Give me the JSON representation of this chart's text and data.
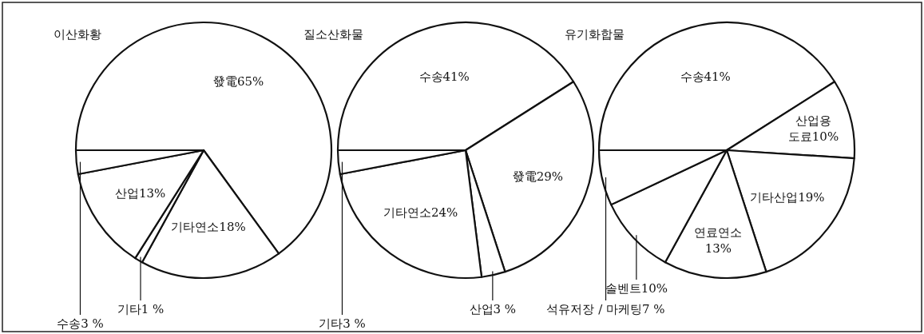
{
  "chart_data": [
    {
      "type": "pie",
      "title": "이산화황",
      "categories": [
        "發電",
        "기타연소",
        "기타",
        "산업",
        "수송"
      ],
      "values": [
        65,
        18,
        1,
        13,
        3
      ],
      "value_labels": [
        "65%",
        "18%",
        "1 %",
        "13%",
        "3 %"
      ],
      "colors": [
        "#ffffff",
        "#ffffff",
        "#ffffff",
        "#ffffff",
        "#ffffff"
      ]
    },
    {
      "type": "pie",
      "title": "질소산화물",
      "categories": [
        "수송",
        "發電",
        "산업",
        "기타연소",
        "기타"
      ],
      "values": [
        41,
        29,
        3,
        24,
        3
      ],
      "value_labels": [
        "41%",
        "29%",
        "3 %",
        "24%",
        "3 %"
      ],
      "colors": [
        "#ffffff",
        "#ffffff",
        "#ffffff",
        "#ffffff",
        "#ffffff"
      ]
    },
    {
      "type": "pie",
      "title": "유기화합물",
      "categories": [
        "수송",
        "산업용 도료",
        "기타산업",
        "연료연소",
        "솔벤트",
        "석유저장 / 마케팅"
      ],
      "values": [
        41,
        10,
        19,
        13,
        10,
        7
      ],
      "value_labels": [
        "41%",
        "10%",
        "19%",
        "13%",
        "10%",
        "7 %"
      ],
      "colors": [
        "#ffffff",
        "#ffffff",
        "#ffffff",
        "#ffffff",
        "#ffffff",
        "#ffffff"
      ]
    }
  ]
}
